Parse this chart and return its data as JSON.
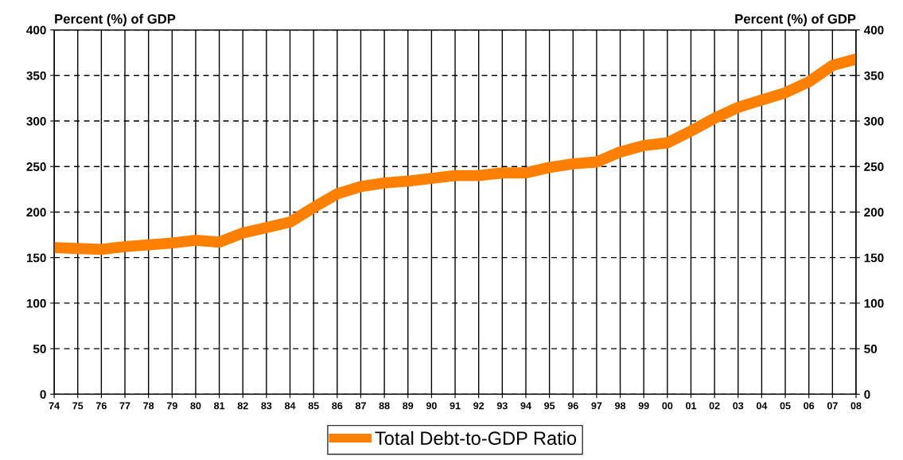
{
  "chart_data": {
    "type": "line",
    "ylabel": "Percent (%) of GDP",
    "y2label": "Percent (%) of GDP",
    "categories": [
      "74",
      "75",
      "76",
      "77",
      "78",
      "79",
      "80",
      "81",
      "82",
      "83",
      "84",
      "85",
      "86",
      "87",
      "88",
      "89",
      "90",
      "91",
      "92",
      "93",
      "94",
      "95",
      "96",
      "97",
      "98",
      "99",
      "00",
      "01",
      "02",
      "03",
      "04",
      "05",
      "06",
      "07",
      "08"
    ],
    "series": [
      {
        "name": "Total Debt-to-GDP Ratio",
        "color": "#ff8000",
        "values": [
          161,
          160,
          159,
          162,
          164,
          166,
          169,
          167,
          177,
          183,
          189,
          205,
          220,
          228,
          232,
          234,
          237,
          240,
          240,
          243,
          243,
          249,
          253,
          255,
          266,
          273,
          276,
          289,
          303,
          315,
          323,
          331,
          343,
          361,
          368
        ]
      }
    ],
    "ylim": [
      0,
      400
    ],
    "yticks": [
      0,
      50,
      100,
      150,
      200,
      250,
      300,
      350,
      400
    ],
    "y2lim": [
      0,
      400
    ],
    "y2ticks": [
      0,
      50,
      100,
      150,
      200,
      250,
      300,
      350,
      400
    ],
    "grid": true,
    "legend": "bottom",
    "marker": "none",
    "line_style": "solid"
  }
}
